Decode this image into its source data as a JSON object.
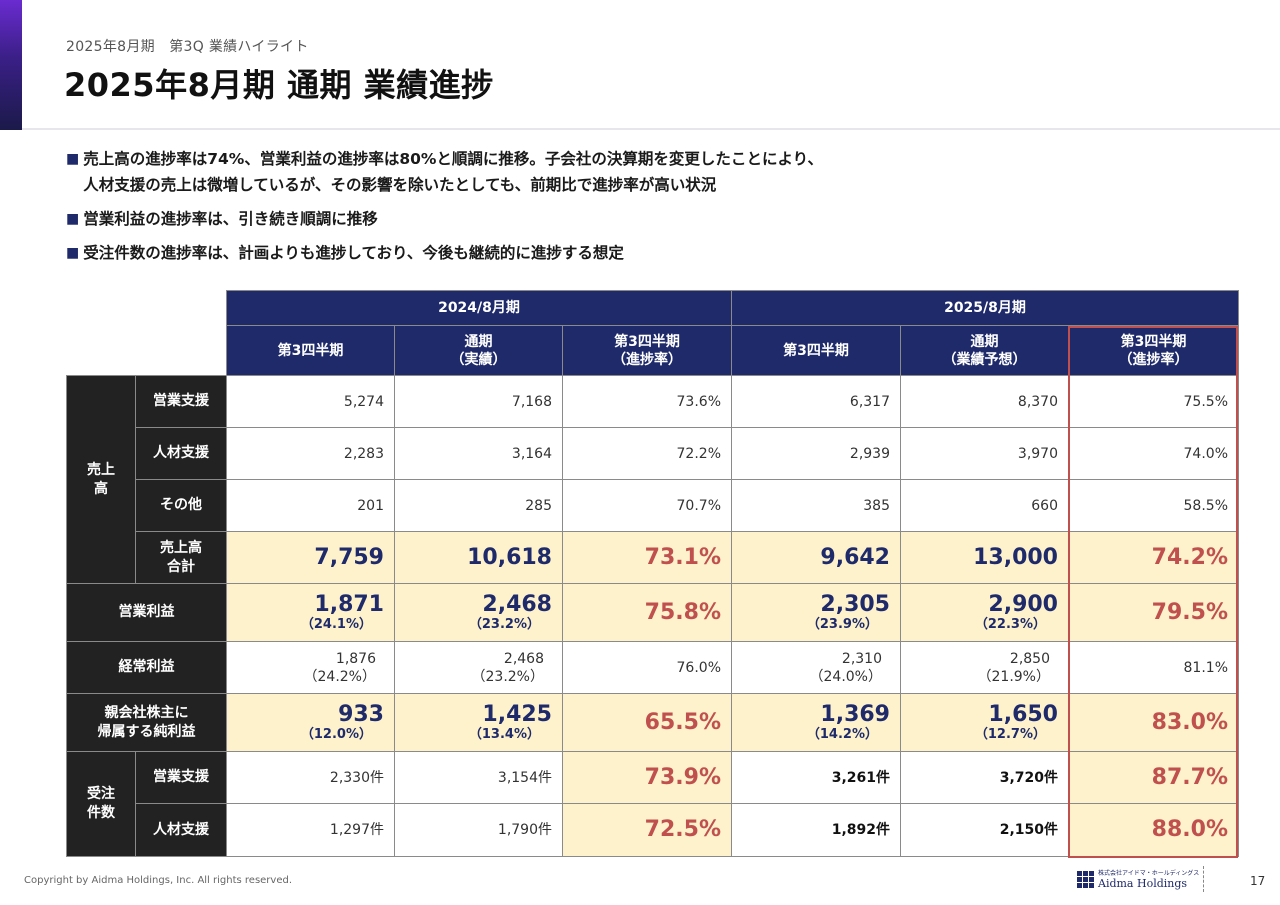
{
  "header": {
    "subtitle": "2025年8月期　第3Q 業績ハイライト",
    "title": "2025年8月期 通期 業績進捗"
  },
  "bullets": [
    {
      "lines": [
        "売上高の進捗率は74%、営業利益の進捗率は80%と順調に推移。子会社の決算期を変更したことにより、",
        "人材支援の売上は微増しているが、その影響を除いたとしても、前期比で進捗率が高い状況"
      ]
    },
    {
      "lines": [
        "営業利益の進捗率は、引き続き順調に推移"
      ]
    },
    {
      "lines": [
        "受注件数の進捗率は、計画よりも進捗しており、今後も継続的に進捗する想定"
      ]
    }
  ],
  "bullet_marker": "■",
  "table": {
    "periods": [
      "2024/8月期",
      "2025/8月期"
    ],
    "columns": [
      "第3四半期",
      "通期\n（実績）",
      "第3四半期\n（進捗率）",
      "第3四半期",
      "通期\n（業績予想）",
      "第3四半期\n（進捗率）"
    ],
    "groups": {
      "sales": "売上\n高",
      "orders": "受注\n件数"
    },
    "rows": {
      "sales_ops": {
        "label": "営業支援",
        "values": [
          "5,274",
          "7,168",
          "73.6%",
          "6,317",
          "8,370",
          "75.5%"
        ]
      },
      "sales_hr": {
        "label": "人材支援",
        "values": [
          "2,283",
          "3,164",
          "72.2%",
          "2,939",
          "3,970",
          "74.0%"
        ]
      },
      "sales_other": {
        "label": "その他",
        "values": [
          "201",
          "285",
          "70.7%",
          "385",
          "660",
          "58.5%"
        ]
      },
      "sales_total": {
        "label": "売上高\n合計",
        "values": [
          "7,759",
          "10,618",
          "73.1%",
          "9,642",
          "13,000",
          "74.2%"
        ]
      },
      "op_income": {
        "label": "営業利益",
        "values": [
          "1,871",
          "2,468",
          "75.8%",
          "2,305",
          "2,900",
          "79.5%"
        ],
        "subs": [
          "（24.1%）",
          "（23.2%）",
          "",
          "（23.9%）",
          "（22.3%）",
          ""
        ]
      },
      "ord_income": {
        "label": "経常利益",
        "values": [
          "1,876",
          "2,468",
          "76.0%",
          "2,310",
          "2,850",
          "81.1%"
        ],
        "subs": [
          "（24.2%）",
          "（23.2%）",
          "",
          "（24.0%）",
          "（21.9%）",
          ""
        ]
      },
      "net_income": {
        "label": "親会社株主に\n帰属する純利益",
        "values": [
          "933",
          "1,425",
          "65.5%",
          "1,369",
          "1,650",
          "83.0%"
        ],
        "subs": [
          "（12.0%）",
          "（13.4%）",
          "",
          "（14.2%）",
          "（12.7%）",
          ""
        ]
      },
      "orders_ops": {
        "label": "営業支援",
        "values": [
          "2,330件",
          "3,154件",
          "73.9%",
          "3,261件",
          "3,720件",
          "87.7%"
        ]
      },
      "orders_hr": {
        "label": "人材支援",
        "values": [
          "1,297件",
          "1,790件",
          "72.5%",
          "1,892件",
          "2,150件",
          "88.0%"
        ]
      }
    }
  },
  "footer": {
    "copyright": "Copyright by Aidma Holdings, Inc. All rights reserved.",
    "logo_small": "株式会社アイドマ・ホールディングス",
    "logo_name": "Aidma Holdings",
    "page": "17"
  },
  "colors": {
    "navy": "#1f2a6b",
    "highlight": "#fdf2cc",
    "accent_red": "#c0504d",
    "dark_cell": "#222222"
  }
}
